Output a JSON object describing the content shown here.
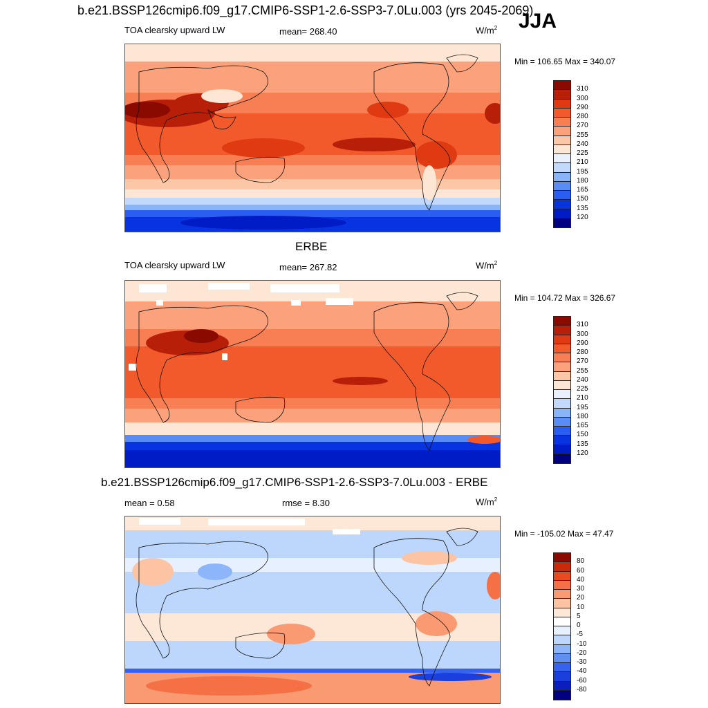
{
  "title": "b.e21.BSSP126cmip6.f09_g17.CMIP6-SSP1-2.6-SSP3-7.0Lu.003 (yrs 2045-2069)",
  "season": "JJA",
  "colors": {
    "main": [
      "#000080",
      "#001cc6",
      "#0733e0",
      "#2a5ef0",
      "#5a8cf5",
      "#8ab4f8",
      "#c2d9fb",
      "#e8f1fd",
      "#fde6d3",
      "#fcc7a6",
      "#fba27c",
      "#f87f54",
      "#f25a2b",
      "#e03a12",
      "#b81f08",
      "#8b0a00"
    ],
    "diff": [
      "#000080",
      "#0a1fbd",
      "#1a3fdc",
      "#3563ee",
      "#5f8ef5",
      "#8db5f9",
      "#bcd6fc",
      "#e6f0fe",
      "#ffffff",
      "#fde8d8",
      "#fcc4a3",
      "#fa9a72",
      "#f57045",
      "#ea4a1f",
      "#c82a0a",
      "#8b0a00"
    ]
  },
  "panels": [
    {
      "id": "model",
      "heading": "",
      "left_label": "TOA clearsky upward LW",
      "mid_label": "mean= 268.40",
      "units": "W/m",
      "units_sup": "2",
      "minmax": "Min = 106.65 Max = 340.07",
      "palette": "main",
      "levels": [
        "310",
        "300",
        "290",
        "280",
        "270",
        "255",
        "240",
        "225",
        "210",
        "195",
        "180",
        "165",
        "150",
        "135",
        "120"
      ]
    },
    {
      "id": "obs",
      "heading": "ERBE",
      "left_label": "TOA clearsky upward LW",
      "mid_label": "mean= 267.82",
      "units": "W/m",
      "units_sup": "2",
      "minmax": "Min = 104.72 Max = 326.67",
      "palette": "main",
      "levels": [
        "310",
        "300",
        "290",
        "280",
        "270",
        "255",
        "240",
        "225",
        "210",
        "195",
        "180",
        "165",
        "150",
        "135",
        "120"
      ]
    },
    {
      "id": "diff",
      "heading": "b.e21.BSSP126cmip6.f09_g17.CMIP6-SSP1-2.6-SSP3-7.0Lu.003 - ERBE",
      "left_label": "mean =   0.58",
      "mid_label": "rmse =   8.30",
      "units": "W/m",
      "units_sup": "2",
      "minmax": "Min = -105.02 Max =  47.47",
      "palette": "diff",
      "levels": [
        "80",
        "60",
        "40",
        "30",
        "20",
        "10",
        "5",
        "0",
        "-5",
        "-10",
        "-20",
        "-30",
        "-40",
        "-60",
        "-80"
      ]
    }
  ]
}
